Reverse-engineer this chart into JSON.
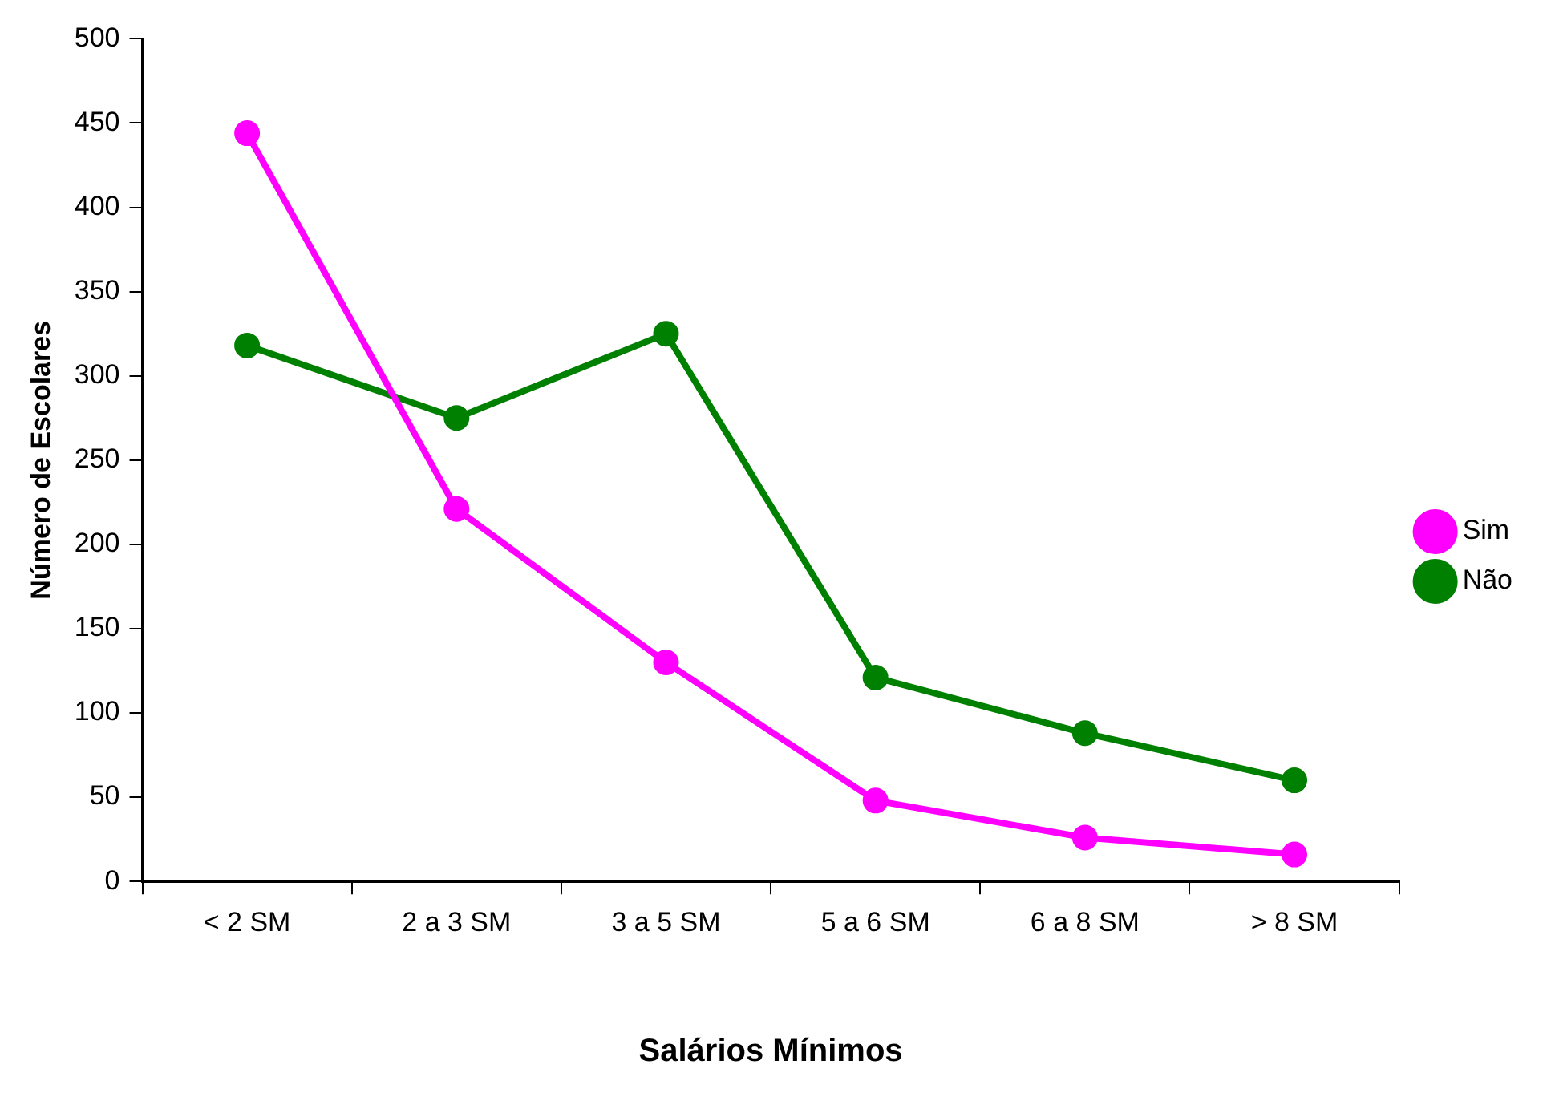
{
  "chart_data": {
    "type": "line",
    "xlabel": "Salários Mínimos",
    "ylabel": "Número de Escolares",
    "categories": [
      "< 2 SM",
      "2 a 3 SM",
      "3 a 5 SM",
      "5 a 6 SM",
      "6 a 8 SM",
      "> 8 SM"
    ],
    "series": [
      {
        "name": "Sim",
        "color": "#ff00ff",
        "values": [
          444,
          221,
          130,
          48,
          26,
          16
        ]
      },
      {
        "name": "Não",
        "color": "#008000",
        "values": [
          318,
          275,
          325,
          121,
          88,
          60
        ]
      }
    ],
    "ylim": [
      0,
      500
    ],
    "yticks": [
      0,
      50,
      100,
      150,
      200,
      250,
      300,
      350,
      400,
      450,
      500
    ],
    "grid": false,
    "legend": "right",
    "marker": "circle",
    "line_style": "solid"
  }
}
